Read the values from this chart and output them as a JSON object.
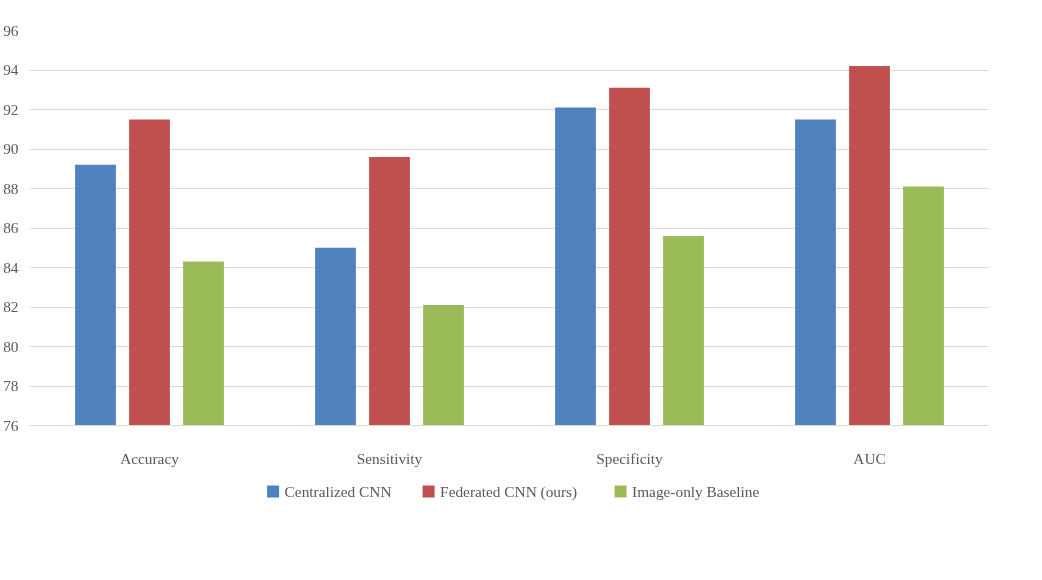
{
  "chart_data": {
    "type": "bar",
    "categories": [
      "Accuracy",
      "Sensitivity",
      "Specificity",
      "AUC"
    ],
    "series": [
      {
        "name": "Centralized CNN",
        "color": "#4f81bd",
        "values": [
          89.2,
          85.0,
          92.1,
          91.5
        ]
      },
      {
        "name": "Federated CNN (ours)",
        "color": "#c0504d",
        "values": [
          91.5,
          89.6,
          93.1,
          94.2
        ]
      },
      {
        "name": "Image-only Baseline",
        "color": "#9bbb59",
        "values": [
          84.3,
          82.1,
          85.6,
          88.1
        ]
      }
    ],
    "ylim": [
      76,
      96
    ],
    "yticks": [
      76,
      78,
      80,
      82,
      84,
      86,
      88,
      90,
      92,
      94,
      96
    ],
    "grid": "y",
    "legend": "bottom"
  }
}
